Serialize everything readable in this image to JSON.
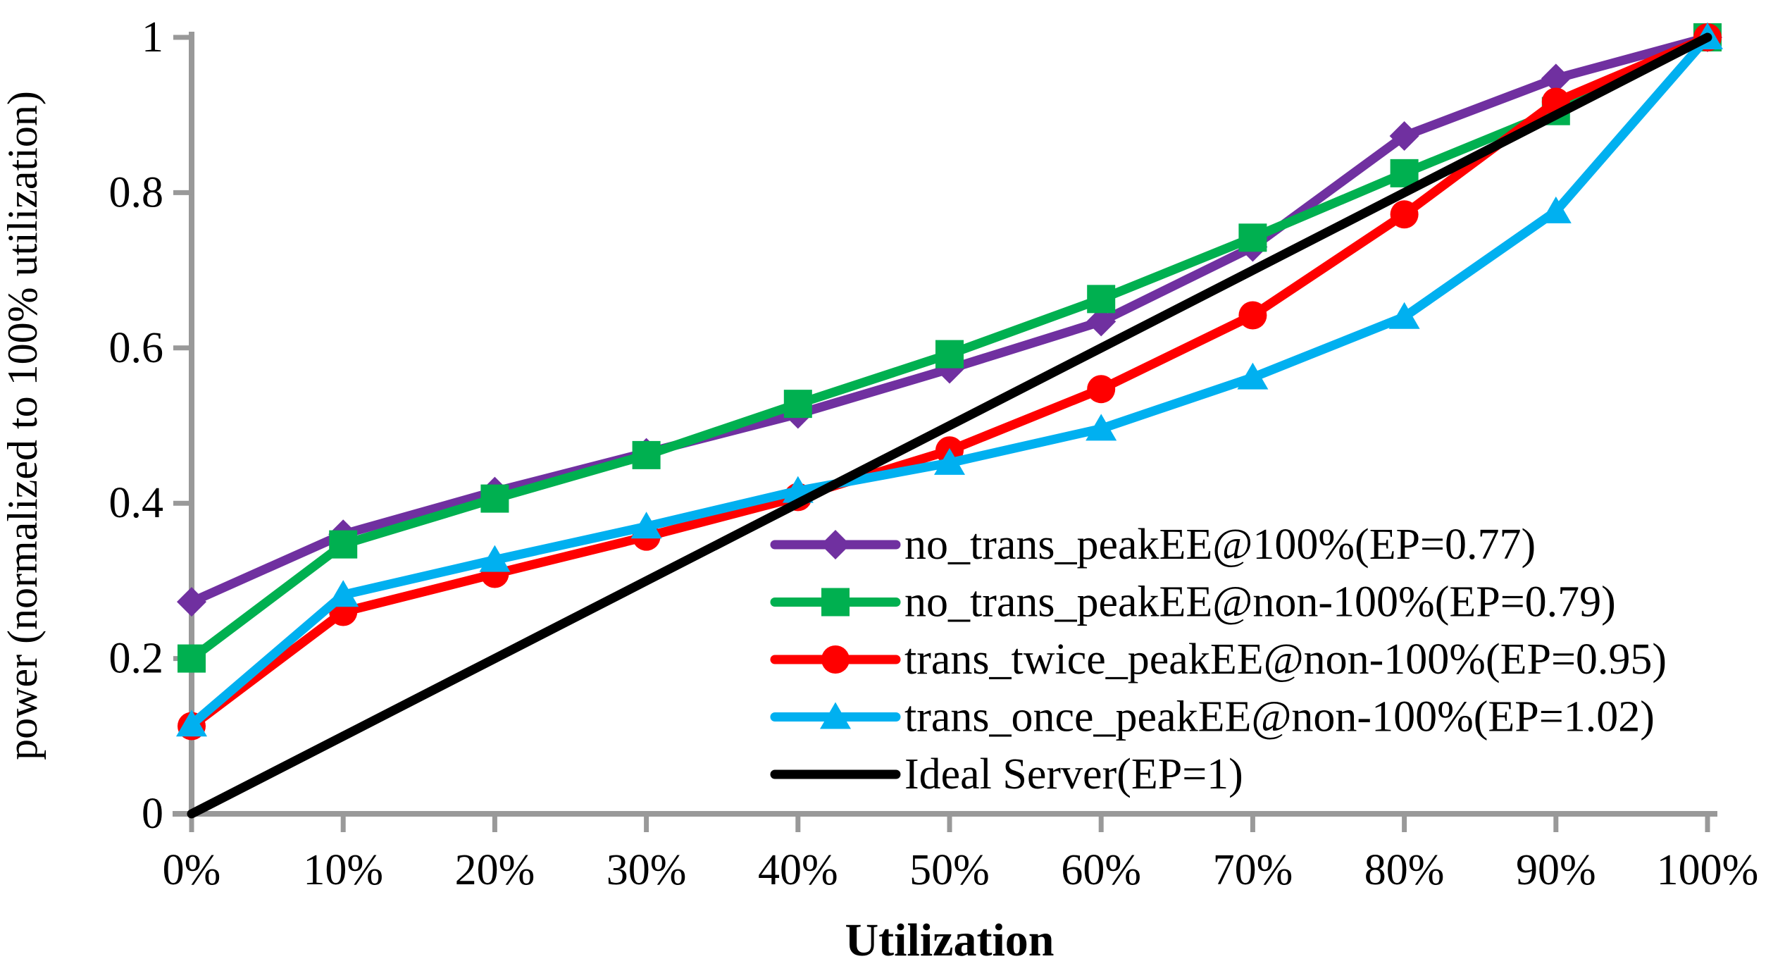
{
  "figure": {
    "background": "#FFFFFF",
    "axis_color": "#999999",
    "text_color": "#000000"
  },
  "chart_data": {
    "type": "line",
    "title": "",
    "xlabel": "Utilization",
    "ylabel": "power (normalized to 100% utilization)",
    "xlim": [
      0,
      100
    ],
    "ylim": [
      0,
      1
    ],
    "grid": false,
    "legend_position": "inside-right-middle",
    "x": [
      0,
      10,
      20,
      30,
      40,
      50,
      60,
      70,
      80,
      90,
      100
    ],
    "x_tick_labels": [
      "0%",
      "10%",
      "20%",
      "30%",
      "40%",
      "50%",
      "60%",
      "70%",
      "80%",
      "90%",
      "100%"
    ],
    "y_ticks": [
      {
        "label": "0",
        "value": 0
      },
      {
        "label": "0.2",
        "value": 0.2
      },
      {
        "label": "0.4",
        "value": 0.4
      },
      {
        "label": "0.6",
        "value": 0.6
      },
      {
        "label": "0.8",
        "value": 0.8
      },
      {
        "label": "1",
        "value": 1
      }
    ],
    "series": [
      {
        "name": "no_trans_peakEE@100%(EP=0.77)",
        "color": "#7030A0",
        "marker": "diamond",
        "values": [
          0.273,
          0.36,
          0.415,
          0.465,
          0.515,
          0.573,
          0.634,
          0.73,
          0.873,
          0.947,
          1.0
        ]
      },
      {
        "name": "no_trans_peakEE@non-100%(EP=0.79)",
        "color": "#00B050",
        "marker": "square",
        "values": [
          0.2,
          0.347,
          0.406,
          0.462,
          0.528,
          0.592,
          0.663,
          0.742,
          0.825,
          0.905,
          1.0
        ]
      },
      {
        "name": "trans_twice_peakEE@non-100%(EP=0.95)",
        "color": "#FF0000",
        "marker": "circle",
        "values": [
          0.113,
          0.26,
          0.309,
          0.357,
          0.408,
          0.468,
          0.547,
          0.642,
          0.772,
          0.917,
          1.0
        ]
      },
      {
        "name": "trans_once_peakEE@non-100%(EP=1.02)",
        "color": "#00B0F0",
        "marker": "triangle",
        "values": [
          0.115,
          0.282,
          0.327,
          0.37,
          0.416,
          0.452,
          0.496,
          0.562,
          0.64,
          0.776,
          1.0
        ]
      },
      {
        "name": "Ideal Server(EP=1)",
        "color": "#000000",
        "marker": "none",
        "values": [
          0.0,
          0.1,
          0.2,
          0.3,
          0.4,
          0.5,
          0.6,
          0.7,
          0.8,
          0.9,
          1.0
        ]
      }
    ]
  }
}
